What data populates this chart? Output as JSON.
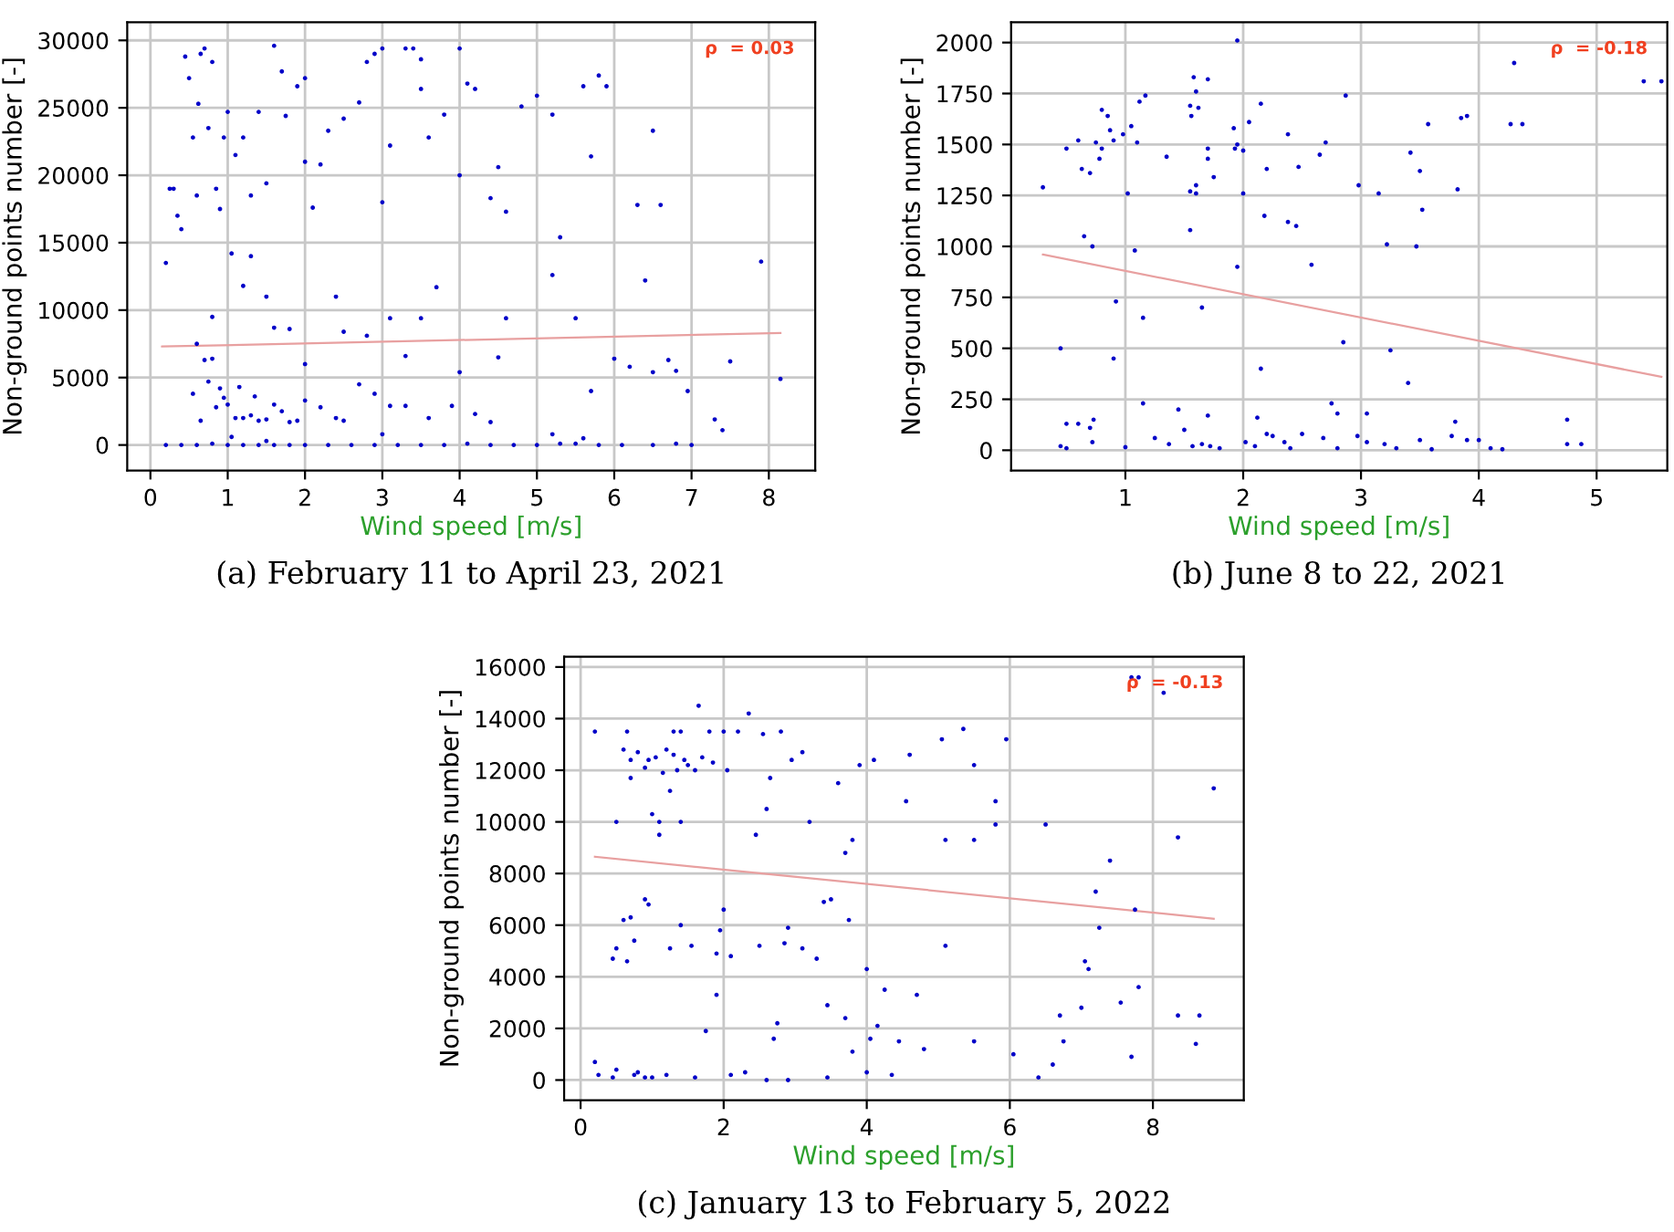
{
  "chart_data": [
    {
      "type": "scatter",
      "xlabel": "Wind speed [m/s]",
      "ylabel": "Non-ground points number [-]",
      "xlim": [
        -0.3,
        8.6
      ],
      "ylim": [
        -1900,
        31350
      ],
      "xticks": [
        0,
        1,
        2,
        3,
        4,
        5,
        6,
        7,
        8
      ],
      "yticks": [
        0,
        5000,
        10000,
        15000,
        20000,
        25000,
        30000
      ],
      "grid": true,
      "annotations": [
        "ρ  = 0.03",
        "(a) February 11 to April 23, 2021"
      ],
      "series": [
        {
          "marker": "circle",
          "color": "#0000c8",
          "x": [
            0.2,
            0.25,
            0.3,
            0.35,
            0.4,
            0.45,
            0.5,
            0.55,
            0.6,
            0.62,
            0.65,
            0.7,
            0.75,
            0.8,
            0.85,
            0.9,
            0.95,
            1.0,
            1.05,
            1.1,
            1.2,
            1.3,
            1.4,
            1.5,
            1.6,
            1.7,
            1.75,
            1.9,
            2.0,
            2.0,
            2.1,
            2.2,
            2.3,
            2.5,
            2.7,
            2.8,
            2.9,
            3.0,
            3.0,
            3.1,
            3.3,
            3.4,
            3.5,
            3.5,
            3.6,
            3.8,
            4.0,
            4.0,
            4.1,
            4.2,
            4.4,
            4.5,
            4.6,
            4.8,
            5.0,
            5.2,
            5.3,
            5.6,
            5.7,
            5.8,
            5.9,
            6.3,
            6.4,
            6.5,
            6.6,
            7.9,
            8.15,
            7.5,
            7.4,
            7.3,
            6.95,
            6.8,
            6.7,
            6.5,
            6.2,
            6.0,
            5.7,
            5.5,
            5.2,
            4.6,
            4.5,
            4.2,
            4.0,
            3.7,
            3.5,
            3.3,
            3.1,
            2.8,
            2.5,
            2.4,
            2.0,
            1.8,
            1.6,
            1.5,
            1.3,
            1.2,
            0.8,
            0.6,
            0.7,
            0.8,
            0.9,
            1.0,
            1.1,
            1.2,
            1.3,
            1.4,
            1.5,
            1.6,
            1.7,
            1.8,
            1.9,
            2.0,
            2.2,
            2.4,
            2.5,
            2.7,
            2.9,
            3.1,
            3.3,
            3.6,
            3.9,
            4.4,
            0.75,
            0.85,
            0.95,
            1.15,
            1.35,
            0.65,
            0.55,
            1.05,
            1.5,
            3.0,
            5.2,
            5.6,
            0.2,
            0.4,
            0.6,
            0.8,
            1.0,
            1.2,
            1.4,
            1.6,
            1.8,
            2.0,
            2.3,
            2.6,
            2.9,
            3.2,
            3.5,
            3.8,
            4.1,
            4.4,
            4.7,
            5.0,
            5.3,
            5.5,
            5.8,
            6.1,
            6.5,
            6.8,
            7.0
          ],
          "values": [
            13500,
            19000,
            19000,
            17000,
            16000,
            28800,
            27200,
            22800,
            18500,
            25300,
            29000,
            29400,
            23500,
            28400,
            19000,
            17500,
            22800,
            24700,
            14200,
            21500,
            22800,
            18500,
            24700,
            19400,
            29600,
            27700,
            24400,
            26600,
            21000,
            27200,
            17600,
            20800,
            23300,
            24200,
            25400,
            28400,
            29000,
            29400,
            18000,
            22200,
            29400,
            29400,
            28600,
            26400,
            22800,
            24500,
            29400,
            20000,
            26800,
            26400,
            18300,
            20600,
            17300,
            25100,
            25900,
            24500,
            15400,
            26600,
            21400,
            27400,
            26600,
            17800,
            12200,
            23300,
            17800,
            13600,
            4900,
            6200,
            1100,
            1900,
            4000,
            5500,
            6300,
            5400,
            5800,
            6400,
            4000,
            9400,
            12600,
            9400,
            6500,
            2300,
            5400,
            11700,
            9400,
            6600,
            9400,
            8100,
            8400,
            11000,
            6000,
            8600,
            8700,
            11000,
            14000,
            11800,
            9500,
            7500,
            6300,
            6400,
            4200,
            3000,
            2000,
            2000,
            2200,
            1800,
            1900,
            3000,
            2500,
            1700,
            1800,
            3300,
            2800,
            2000,
            1800,
            4500,
            3800,
            2900,
            2900,
            2000,
            2900,
            1700,
            4700,
            2800,
            3500,
            4300,
            3600,
            1800,
            3800,
            600,
            300,
            800,
            800,
            500,
            0,
            0,
            0,
            100,
            0,
            0,
            0,
            0,
            0,
            0,
            0,
            0,
            0,
            0,
            0,
            0,
            100,
            0,
            0,
            0,
            100,
            100,
            0,
            0,
            0,
            100,
            0
          ]
        },
        {
          "type": "line",
          "color": "#e8a0a0",
          "x": [
            0.15,
            8.15
          ],
          "values": [
            7300,
            8300
          ]
        }
      ]
    },
    {
      "type": "scatter",
      "xlabel": "Wind speed [m/s]",
      "ylabel": "Non-ground points number [-]",
      "xlim": [
        0.03,
        5.6
      ],
      "ylim": [
        -100,
        2100
      ],
      "xticks": [
        1,
        2,
        3,
        4,
        5
      ],
      "yticks": [
        0,
        250,
        500,
        750,
        1000,
        1250,
        1500,
        1750,
        2000
      ],
      "grid": true,
      "annotations": [
        "ρ  = -0.18",
        "(b) June 8 to 22, 2021"
      ],
      "series": [
        {
          "marker": "circle",
          "color": "#0000c8",
          "x": [
            0.3,
            0.45,
            0.45,
            0.5,
            0.5,
            0.5,
            0.6,
            0.6,
            0.63,
            0.65,
            0.7,
            0.7,
            0.72,
            0.72,
            0.73,
            0.75,
            0.78,
            0.8,
            0.8,
            0.85,
            0.87,
            0.9,
            0.92,
            0.9,
            0.98,
            1.0,
            1.02,
            1.05,
            1.08,
            1.1,
            1.12,
            1.15,
            1.15,
            1.17,
            1.25,
            1.35,
            1.37,
            1.45,
            1.5,
            1.55,
            1.55,
            1.55,
            1.56,
            1.57,
            1.58,
            1.6,
            1.6,
            1.6,
            1.62,
            1.65,
            1.65,
            1.7,
            1.7,
            1.7,
            1.7,
            1.72,
            1.75,
            1.8,
            1.92,
            1.93,
            1.95,
            1.95,
            1.95,
            2.0,
            2.0,
            2.02,
            2.05,
            2.1,
            2.12,
            2.15,
            2.15,
            2.18,
            2.2,
            2.2,
            2.25,
            2.35,
            2.38,
            2.38,
            2.4,
            2.45,
            2.47,
            2.5,
            2.58,
            2.65,
            2.68,
            2.7,
            2.75,
            2.8,
            2.8,
            2.85,
            2.87,
            2.97,
            2.98,
            3.05,
            3.05,
            3.15,
            3.2,
            3.22,
            3.25,
            3.3,
            3.4,
            3.42,
            3.47,
            3.5,
            3.5,
            3.52,
            3.57,
            3.6,
            3.77,
            3.8,
            3.82,
            3.85,
            3.9,
            3.9,
            4.0,
            4.1,
            4.2,
            4.27,
            4.3,
            4.37,
            4.75,
            4.75,
            4.87,
            5.4,
            5.55
          ],
          "values": [
            1290,
            500,
            20,
            10,
            1480,
            130,
            1520,
            130,
            1380,
            1050,
            1360,
            110,
            1000,
            40,
            150,
            1510,
            1430,
            1670,
            1480,
            1640,
            1570,
            450,
            730,
            1520,
            1550,
            15,
            1260,
            1590,
            980,
            1510,
            1710,
            650,
            230,
            1740,
            60,
            1440,
            30,
            200,
            100,
            1690,
            1270,
            1080,
            1640,
            20,
            1830,
            1760,
            1260,
            1300,
            1680,
            700,
            30,
            1820,
            1480,
            1430,
            170,
            20,
            1340,
            10,
            1580,
            1480,
            2010,
            900,
            1500,
            1470,
            1260,
            40,
            1610,
            20,
            160,
            400,
            1700,
            1150,
            1380,
            80,
            70,
            40,
            1120,
            1550,
            10,
            1100,
            1390,
            80,
            910,
            1450,
            60,
            1510,
            230,
            180,
            10,
            530,
            1740,
            70,
            1300,
            180,
            40,
            1260,
            30,
            1010,
            490,
            10,
            330,
            1460,
            1000,
            50,
            1370,
            1180,
            1600,
            5,
            70,
            140,
            1280,
            1630,
            1640,
            50,
            50,
            10,
            5,
            1600,
            1900,
            1600,
            150,
            30,
            30,
            1810,
            1810
          ]
        },
        {
          "type": "line",
          "color": "#e8a0a0",
          "x": [
            0.3,
            5.55
          ],
          "values": [
            960,
            360
          ]
        }
      ]
    },
    {
      "type": "scatter",
      "xlabel": "Wind speed [m/s]",
      "ylabel": "Non-ground points number [-]",
      "xlim": [
        -0.23,
        9.27
      ],
      "ylim": [
        -780,
        16400
      ],
      "xticks": [
        0,
        2,
        4,
        6,
        8
      ],
      "yticks": [
        0,
        2000,
        4000,
        6000,
        8000,
        10000,
        12000,
        14000,
        16000
      ],
      "grid": true,
      "annotations": [
        "ρ  = -0.13",
        "(c) January 13 to February 5, 2022"
      ],
      "series": [
        {
          "marker": "circle",
          "color": "#0000c8",
          "x": [
            0.2,
            0.2,
            0.25,
            0.45,
            0.45,
            0.5,
            0.5,
            0.5,
            0.6,
            0.6,
            0.65,
            0.65,
            0.7,
            0.7,
            0.7,
            0.75,
            0.75,
            0.8,
            0.8,
            0.9,
            0.9,
            0.95,
            0.95,
            1.0,
            1.0,
            1.05,
            1.1,
            1.1,
            1.15,
            1.2,
            1.25,
            1.25,
            1.3,
            1.3,
            1.35,
            1.4,
            1.4,
            1.4,
            1.45,
            1.5,
            1.55,
            1.6,
            1.65,
            1.7,
            1.75,
            1.8,
            1.85,
            1.9,
            1.9,
            1.95,
            2.0,
            2.0,
            2.05,
            2.1,
            2.1,
            2.2,
            2.3,
            2.35,
            2.45,
            2.5,
            2.55,
            2.6,
            2.65,
            2.7,
            2.75,
            2.8,
            2.85,
            2.9,
            2.95,
            3.1,
            3.1,
            3.2,
            3.3,
            3.4,
            3.45,
            3.5,
            3.6,
            3.7,
            3.75,
            3.7,
            3.8,
            3.8,
            3.9,
            4.0,
            4.05,
            4.1,
            4.15,
            4.25,
            4.35,
            4.45,
            4.55,
            4.6,
            4.7,
            4.8,
            5.05,
            5.1,
            5.1,
            5.35,
            5.5,
            5.5,
            5.5,
            5.8,
            5.8,
            5.95,
            6.05,
            6.4,
            6.5,
            6.6,
            6.7,
            6.75,
            7.0,
            7.05,
            7.1,
            7.2,
            7.25,
            7.4,
            7.55,
            7.7,
            7.7,
            7.75,
            7.8,
            7.8,
            8.15,
            8.35,
            8.35,
            8.6,
            8.65,
            8.85,
            0.9,
            1.2,
            1.6,
            2.6,
            2.9,
            3.45,
            4.0
          ],
          "values": [
            13500,
            700,
            200,
            4700,
            100,
            5100,
            10000,
            400,
            6200,
            12800,
            13500,
            4600,
            6300,
            11700,
            12400,
            5400,
            200,
            12700,
            300,
            7000,
            12100,
            6800,
            12400,
            10300,
            100,
            12500,
            9500,
            10000,
            11900,
            12800,
            5100,
            11200,
            13500,
            12600,
            12000,
            6000,
            13500,
            10000,
            12400,
            12200,
            5200,
            12000,
            14500,
            12500,
            1900,
            13500,
            12300,
            3300,
            4900,
            5800,
            6600,
            13500,
            12000,
            4800,
            200,
            13500,
            300,
            14200,
            9500,
            5200,
            13400,
            10500,
            11700,
            1600,
            2200,
            13500,
            5300,
            5900,
            12400,
            5100,
            12700,
            10000,
            4700,
            6900,
            2900,
            7000,
            11500,
            8800,
            6200,
            2400,
            9300,
            1100,
            12200,
            4300,
            1600,
            12400,
            2100,
            3500,
            200,
            1500,
            10800,
            12600,
            3300,
            1200,
            13200,
            9300,
            5200,
            13600,
            12200,
            9300,
            1500,
            9900,
            10800,
            13200,
            1000,
            100,
            9900,
            600,
            2500,
            1500,
            2800,
            4600,
            4300,
            7300,
            5900,
            8500,
            3000,
            15600,
            900,
            6600,
            15600,
            3600,
            15000,
            9400,
            2500,
            1400,
            2500,
            11300,
            100,
            200,
            100,
            0,
            0,
            100,
            300
          ]
        },
        {
          "type": "line",
          "color": "#e8a0a0",
          "x": [
            0.2,
            8.85
          ],
          "values": [
            8650,
            6250
          ]
        }
      ]
    }
  ]
}
